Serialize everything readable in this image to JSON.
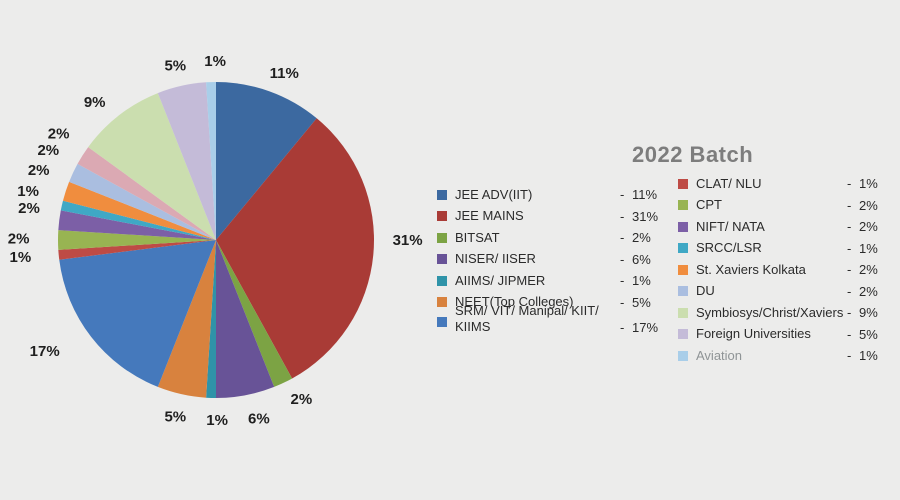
{
  "background": "#ececeb",
  "title_color": "#7d7d7d",
  "chart_data": {
    "type": "pie",
    "title": "2022 Batch",
    "start_angle_deg": 0,
    "direction": "clockwise",
    "legend_position": "right, two columns",
    "total": 100,
    "slices": [
      {
        "label": "JEE ADV(IIT)",
        "value": 11,
        "display": "11%",
        "color": "#3c69a0",
        "legend_column": 1
      },
      {
        "label": "JEE MAINS",
        "value": 31,
        "display": "31%",
        "color": "#a93b36",
        "legend_column": 1
      },
      {
        "label": "BITSAT",
        "value": 2,
        "display": "2%",
        "color": "#7ca344",
        "legend_column": 1
      },
      {
        "label": "NISER/ IISER",
        "value": 6,
        "display": "6%",
        "color": "#685397",
        "legend_column": 1
      },
      {
        "label": "AIIMS/ JIPMER",
        "value": 1,
        "display": "1%",
        "color": "#2f93a8",
        "legend_column": 1
      },
      {
        "label": "NEET(Top Colleges)",
        "value": 5,
        "display": "5%",
        "color": "#d8823e",
        "legend_column": 1
      },
      {
        "label": "SRM/ VIT/ Manipal/ KIIT/ KIIMS",
        "value": 17,
        "display": "17%",
        "color": "#4579bc",
        "legend_column": 1
      },
      {
        "label": "CLAT/ NLU",
        "value": 1,
        "display": "1%",
        "color": "#be4b45",
        "legend_column": 2
      },
      {
        "label": "CPT",
        "value": 2,
        "display": "2%",
        "color": "#98b452",
        "legend_column": 2
      },
      {
        "label": "NIFT/ NATA",
        "value": 2,
        "display": "2%",
        "color": "#7c5fa6",
        "legend_column": 2
      },
      {
        "label": "SRCC/LSR",
        "value": 1,
        "display": "1%",
        "color": "#3fa8c5",
        "legend_column": 2
      },
      {
        "label": "St. Xaviers Kolkata",
        "value": 2,
        "display": "2%",
        "color": "#f08d3e",
        "legend_column": 2
      },
      {
        "label": "DU",
        "value": 2,
        "display": "2%",
        "color": "#aabee0",
        "legend_column": 2
      },
      {
        "label": "",
        "value": 2,
        "display": "2%",
        "color": "#dba9b3",
        "legend_column": 0
      },
      {
        "label": "Symbiosys/Christ/Xaviers",
        "value": 9,
        "display": "9%",
        "color": "#cbdeaf",
        "legend_column": 2
      },
      {
        "label": "Foreign Universities",
        "value": 5,
        "display": "5%",
        "color": "#c4bbd8",
        "legend_column": 2
      },
      {
        "label": "Aviation",
        "value": 1,
        "display": "1%",
        "color": "#a9cee9",
        "legend_column": 2,
        "muted": true
      }
    ]
  }
}
